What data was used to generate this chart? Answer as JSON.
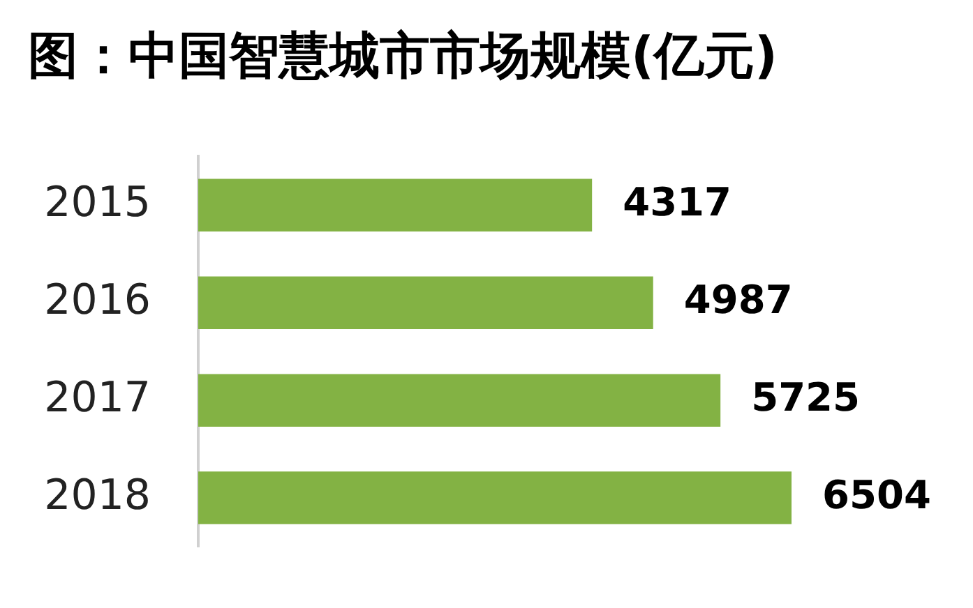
{
  "chart_data": {
    "type": "bar",
    "orientation": "horizontal",
    "title": "图：中国智慧城市市场规模(亿元)",
    "categories": [
      "2015",
      "2016",
      "2017",
      "2018"
    ],
    "values": [
      4317,
      4987,
      5725,
      6504
    ],
    "color": "#83b244",
    "data_labels": true,
    "legend": false,
    "tick_labels": "y"
  }
}
